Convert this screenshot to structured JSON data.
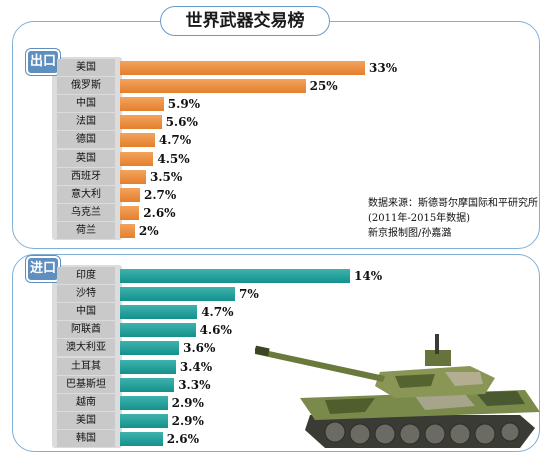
{
  "title": "世界武器交易榜",
  "source": {
    "line1": "数据来源：斯德哥尔摩国际和平研究所",
    "line2": "(2011年-2015年数据)",
    "line3": "新京报制图/孙嘉潞"
  },
  "colors": {
    "export_bar": "#e8853a",
    "import_bar": "#1a9994",
    "frame": "#7fb0d8",
    "badge": "#5f8fbf"
  },
  "chart_data": [
    {
      "type": "bar",
      "orientation": "horizontal",
      "name": "出口",
      "categories": [
        "美国",
        "俄罗斯",
        "中国",
        "法国",
        "德国",
        "英国",
        "西班牙",
        "意大利",
        "乌克兰",
        "荷兰"
      ],
      "values": [
        33,
        25,
        5.9,
        5.6,
        4.7,
        4.5,
        3.5,
        2.7,
        2.6,
        2
      ],
      "value_labels": [
        "33%",
        "25%",
        "5.9%",
        "5.6%",
        "4.7%",
        "4.5%",
        "3.5%",
        "2.7%",
        "2.6%",
        "2%"
      ]
    },
    {
      "type": "bar",
      "orientation": "horizontal",
      "name": "进口",
      "categories": [
        "印度",
        "沙特",
        "中国",
        "阿联酋",
        "澳大利亚",
        "土耳其",
        "巴基斯坦",
        "越南",
        "美国",
        "韩国"
      ],
      "values": [
        14,
        7,
        4.7,
        4.6,
        3.6,
        3.4,
        3.3,
        2.9,
        2.9,
        2.6
      ],
      "value_labels": [
        "14%",
        "7%",
        "4.7%",
        "4.6%",
        "3.6%",
        "3.4%",
        "3.3%",
        "2.9%",
        "2.9%",
        "2.6%"
      ]
    }
  ]
}
